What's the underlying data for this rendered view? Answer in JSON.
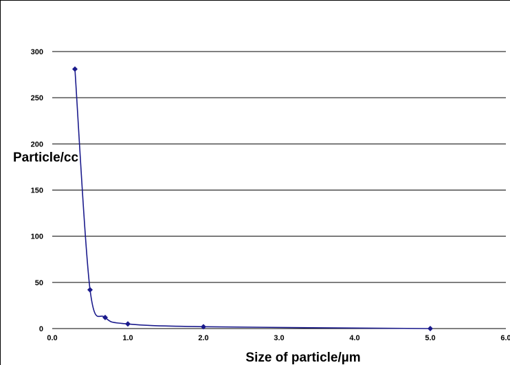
{
  "chart_data": {
    "type": "scatter",
    "xlabel": "Size of particle/µm",
    "ylabel": "Particle/cc",
    "xlim": [
      0,
      6
    ],
    "ylim": [
      0,
      300
    ],
    "x_ticks": [
      "0.0",
      "1.0",
      "2.0",
      "3.0",
      "4.0",
      "5.0",
      "6.0"
    ],
    "y_ticks": [
      "0",
      "50",
      "100",
      "150",
      "200",
      "250",
      "300"
    ],
    "grid": "horizontal",
    "series": [
      {
        "color": "#1a1a8c",
        "marker": "diamond",
        "line": "smooth",
        "points": [
          {
            "x": 0.3,
            "y": 281
          },
          {
            "x": 0.5,
            "y": 42
          },
          {
            "x": 0.7,
            "y": 12
          },
          {
            "x": 1.0,
            "y": 5
          },
          {
            "x": 2.0,
            "y": 2
          },
          {
            "x": 5.0,
            "y": 0
          }
        ]
      }
    ]
  }
}
